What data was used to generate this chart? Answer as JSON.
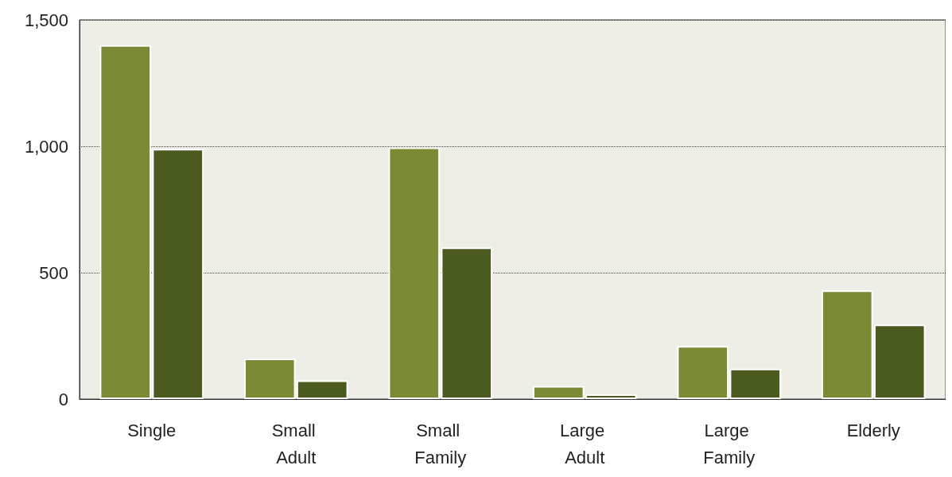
{
  "chart_data": {
    "type": "bar",
    "categories": [
      "Single",
      "Small Adult",
      "Small Family",
      "Large Adult",
      "Large Family",
      "Elderly"
    ],
    "series": [
      {
        "color": "#7b8a35",
        "values": [
          1400,
          160,
          995,
          52,
          210,
          430
        ]
      },
      {
        "color": "#4b5a1e",
        "values": [
          990,
          74,
          600,
          19,
          120,
          295
        ]
      }
    ],
    "ylim": [
      0,
      1500
    ],
    "yticks": [
      0,
      500,
      {
        "value": 1000,
        "label": "1,000"
      },
      {
        "value": 1500,
        "label": "1,500"
      }
    ],
    "grid": "y"
  }
}
